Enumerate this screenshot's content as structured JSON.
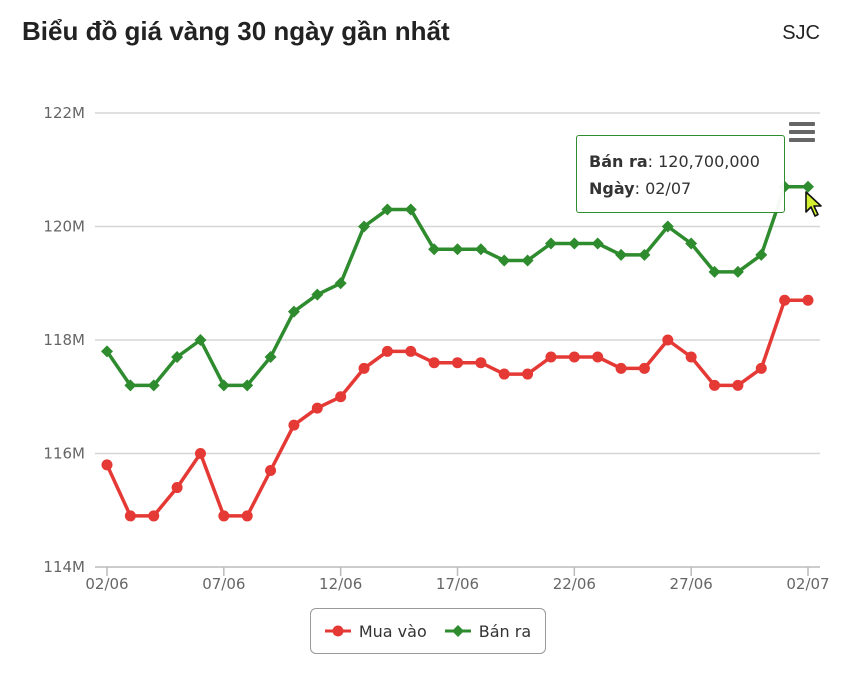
{
  "header": {
    "title": "Biểu đồ giá vàng 30 ngày gần nhất",
    "brand": "SJC"
  },
  "tooltip": {
    "series_label": "Bán ra",
    "value_text": "120,700,000",
    "date_label": "Ngày",
    "date_value": "02/07"
  },
  "chart_data": {
    "type": "line",
    "x": [
      "02/06",
      "03/06",
      "04/06",
      "05/06",
      "06/06",
      "07/06",
      "08/06",
      "09/06",
      "10/06",
      "11/06",
      "12/06",
      "13/06",
      "14/06",
      "15/06",
      "16/06",
      "17/06",
      "18/06",
      "19/06",
      "20/06",
      "21/06",
      "22/06",
      "23/06",
      "24/06",
      "25/06",
      "26/06",
      "27/06",
      "28/06",
      "29/06",
      "30/06",
      "01/07",
      "02/07"
    ],
    "x_tick_labels": [
      "02/06",
      "07/06",
      "12/06",
      "17/06",
      "22/06",
      "27/06",
      "02/07"
    ],
    "ylim": [
      114000000,
      122000000
    ],
    "y_ticks": [
      114000000,
      116000000,
      118000000,
      120000000,
      122000000
    ],
    "y_tick_labels": [
      "114M",
      "116M",
      "118M",
      "120M",
      "122M"
    ],
    "grid": true,
    "legend_position": "bottom-center",
    "series": [
      {
        "name": "Mua vào",
        "color": "#e53935",
        "marker": "circle",
        "values": [
          115800000,
          114900000,
          114900000,
          115400000,
          116000000,
          114900000,
          114900000,
          115700000,
          116500000,
          116800000,
          117000000,
          117500000,
          117800000,
          117800000,
          117600000,
          117600000,
          117600000,
          117400000,
          117400000,
          117700000,
          117700000,
          117700000,
          117500000,
          117500000,
          118000000,
          117700000,
          117200000,
          117200000,
          117500000,
          118700000,
          118700000
        ]
      },
      {
        "name": "Bán ra",
        "color": "#2e8b2e",
        "marker": "diamond",
        "values": [
          117800000,
          117200000,
          117200000,
          117700000,
          118000000,
          117200000,
          117200000,
          117700000,
          118500000,
          118800000,
          119000000,
          120000000,
          120300000,
          120300000,
          119600000,
          119600000,
          119600000,
          119400000,
          119400000,
          119700000,
          119700000,
          119700000,
          119500000,
          119500000,
          120000000,
          119700000,
          119200000,
          119200000,
          119500000,
          120700000,
          120700000
        ]
      }
    ]
  }
}
